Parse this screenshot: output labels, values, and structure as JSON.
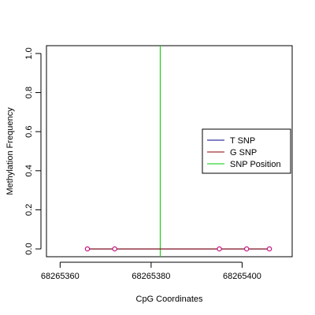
{
  "chart_data": {
    "type": "line",
    "title": "",
    "xlabel": "CpG Coordinates",
    "ylabel": "Methylation Frequency",
    "xlim": [
      68265357,
      68265411
    ],
    "ylim": [
      -0.04,
      1.04
    ],
    "x_ticks": [
      68265360,
      68265380,
      68265400
    ],
    "y_ticks": [
      0.0,
      0.2,
      0.4,
      0.6,
      0.8,
      1.0
    ],
    "x_tick_labels": [
      "68265360",
      "68265380",
      "68265400"
    ],
    "y_tick_labels": [
      "0.0",
      "0.2",
      "0.4",
      "0.6",
      "0.8",
      "1.0"
    ],
    "grid": false,
    "legend_position": "right",
    "series": [
      {
        "name": "T SNP",
        "color": "#00008B",
        "x": [
          68265366,
          68265372,
          68265395,
          68265401,
          68265406
        ],
        "y": [
          0,
          0,
          0,
          0,
          0
        ]
      },
      {
        "name": "G SNP",
        "color": "#8B0000",
        "x": [
          68265366,
          68265372,
          68265395,
          68265401,
          68265406
        ],
        "y": [
          0,
          0,
          0,
          0,
          0
        ]
      }
    ],
    "points_color": "#C71585",
    "snp_position": {
      "name": "SNP Position",
      "x": 68265382,
      "color": "#00CC00"
    }
  }
}
